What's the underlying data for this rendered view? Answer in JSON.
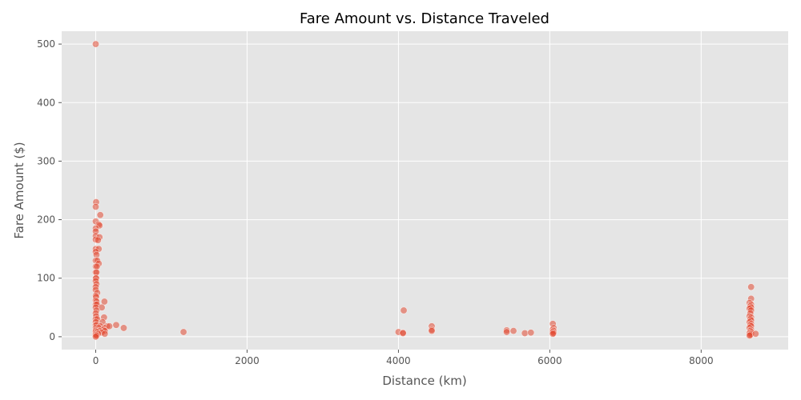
{
  "chart_data": {
    "type": "scatter",
    "title": "Fare Amount vs. Distance Traveled",
    "xlabel": "Distance (km)",
    "ylabel": "Fare Amount ($)",
    "xlim": [
      -450,
      9150
    ],
    "ylim": [
      -22,
      522
    ],
    "xticks": [
      0,
      2000,
      4000,
      6000,
      8000
    ],
    "yticks": [
      0,
      100,
      200,
      300,
      400,
      500
    ],
    "grid": true,
    "style": "ggplot",
    "colors": {
      "background": "#E5E5E5",
      "grid": "#FFFFFF",
      "point": "#E24A33"
    },
    "points": [
      [
        0,
        500
      ],
      [
        5,
        230
      ],
      [
        0,
        222
      ],
      [
        60,
        208
      ],
      [
        0,
        197
      ],
      [
        40,
        192
      ],
      [
        50,
        190
      ],
      [
        0,
        185
      ],
      [
        0,
        180
      ],
      [
        0,
        172
      ],
      [
        50,
        170
      ],
      [
        0,
        166
      ],
      [
        30,
        165
      ],
      [
        0,
        150
      ],
      [
        40,
        150
      ],
      [
        0,
        145
      ],
      [
        10,
        140
      ],
      [
        0,
        130
      ],
      [
        20,
        130
      ],
      [
        40,
        125
      ],
      [
        0,
        120
      ],
      [
        15,
        120
      ],
      [
        0,
        110
      ],
      [
        10,
        110
      ],
      [
        0,
        100
      ],
      [
        5,
        100
      ],
      [
        0,
        95
      ],
      [
        10,
        90
      ],
      [
        0,
        85
      ],
      [
        0,
        80
      ],
      [
        20,
        75
      ],
      [
        0,
        70
      ],
      [
        5,
        68
      ],
      [
        0,
        62
      ],
      [
        10,
        60
      ],
      [
        115,
        60
      ],
      [
        0,
        55
      ],
      [
        15,
        55
      ],
      [
        0,
        50
      ],
      [
        80,
        50
      ],
      [
        10,
        45
      ],
      [
        0,
        40
      ],
      [
        5,
        35
      ],
      [
        110,
        33
      ],
      [
        0,
        30
      ],
      [
        20,
        30
      ],
      [
        0,
        25
      ],
      [
        90,
        25
      ],
      [
        0,
        20
      ],
      [
        10,
        20
      ],
      [
        60,
        18
      ],
      [
        150,
        18
      ],
      [
        0,
        15
      ],
      [
        40,
        15
      ],
      [
        120,
        15
      ],
      [
        180,
        18
      ],
      [
        270,
        20
      ],
      [
        0,
        12
      ],
      [
        100,
        12
      ],
      [
        370,
        15
      ],
      [
        0,
        10
      ],
      [
        50,
        10
      ],
      [
        120,
        10
      ],
      [
        0,
        8
      ],
      [
        20,
        8
      ],
      [
        80,
        7
      ],
      [
        0,
        5
      ],
      [
        30,
        5
      ],
      [
        120,
        5
      ],
      [
        0,
        3
      ],
      [
        10,
        2
      ],
      [
        0,
        0
      ],
      [
        1160,
        8
      ],
      [
        4000,
        8
      ],
      [
        4060,
        7
      ],
      [
        4070,
        45
      ],
      [
        4060,
        6
      ],
      [
        4440,
        18
      ],
      [
        4440,
        12
      ],
      [
        4440,
        10
      ],
      [
        5430,
        11
      ],
      [
        5430,
        8
      ],
      [
        5520,
        10
      ],
      [
        5670,
        6
      ],
      [
        5750,
        7
      ],
      [
        6040,
        22
      ],
      [
        6050,
        15
      ],
      [
        6040,
        12
      ],
      [
        6050,
        10
      ],
      [
        6040,
        8
      ],
      [
        6050,
        6
      ],
      [
        6040,
        5
      ],
      [
        8660,
        85
      ],
      [
        8660,
        65
      ],
      [
        8640,
        58
      ],
      [
        8660,
        55
      ],
      [
        8650,
        52
      ],
      [
        8660,
        50
      ],
      [
        8640,
        48
      ],
      [
        8660,
        45
      ],
      [
        8650,
        40
      ],
      [
        8640,
        35
      ],
      [
        8660,
        33
      ],
      [
        8650,
        30
      ],
      [
        8660,
        28
      ],
      [
        8640,
        25
      ],
      [
        8660,
        22
      ],
      [
        8650,
        20
      ],
      [
        8660,
        18
      ],
      [
        8640,
        15
      ],
      [
        8660,
        12
      ],
      [
        8650,
        10
      ],
      [
        8660,
        8
      ],
      [
        8640,
        6
      ],
      [
        8660,
        5
      ],
      [
        8650,
        3
      ],
      [
        8640,
        2
      ],
      [
        8720,
        5
      ]
    ]
  }
}
